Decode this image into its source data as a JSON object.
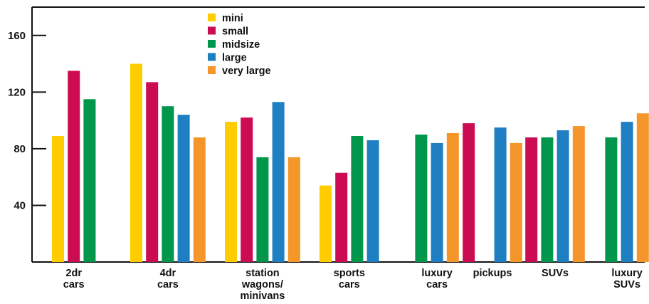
{
  "chart_data": {
    "type": "bar",
    "title": "",
    "xlabel": "",
    "ylabel": "",
    "ylim": [
      0,
      180
    ],
    "yticks": [
      40,
      80,
      120,
      160
    ],
    "grid": false,
    "legend_position": "top-left",
    "categories": [
      [
        "2dr",
        "cars"
      ],
      [
        "4dr",
        "cars"
      ],
      [
        "station",
        "wagons/",
        "minivans"
      ],
      [
        "sports",
        "cars"
      ],
      [
        "luxury",
        "cars"
      ],
      [
        "pickups"
      ],
      [
        "SUVs"
      ],
      [
        "luxury",
        "SUVs"
      ]
    ],
    "series": [
      {
        "name": "mini",
        "color": "#ffcc00",
        "values": [
          89,
          140,
          99,
          54,
          null,
          null,
          null,
          null
        ]
      },
      {
        "name": "small",
        "color": "#cc0c52",
        "values": [
          135,
          127,
          102,
          63,
          null,
          98,
          88,
          null
        ]
      },
      {
        "name": "midsize",
        "color": "#00974c",
        "values": [
          115,
          110,
          74,
          89,
          90,
          null,
          88,
          88
        ]
      },
      {
        "name": "large",
        "color": "#1e7fc3",
        "values": [
          null,
          104,
          113,
          86,
          84,
          95,
          93,
          99
        ]
      },
      {
        "name": "very large",
        "color": "#f4962a",
        "values": [
          null,
          88,
          74,
          null,
          91,
          84,
          96,
          105
        ]
      }
    ]
  }
}
